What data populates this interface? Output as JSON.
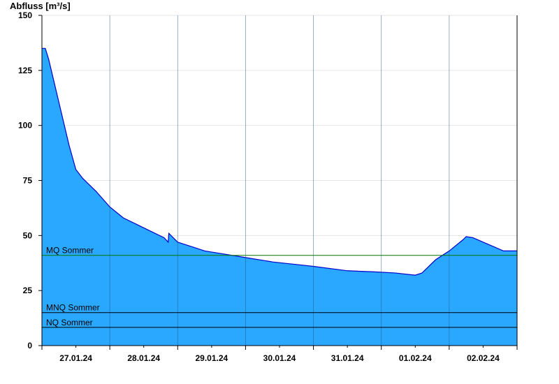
{
  "chart_data": {
    "type": "area",
    "title": "Abfluss [m³/s]",
    "ylim": [
      0,
      150
    ],
    "yticks": [
      0,
      25,
      50,
      75,
      100,
      125,
      150
    ],
    "xlim": [
      0,
      7
    ],
    "day_labels": [
      "27.01.24",
      "28.01.24",
      "29.01.24",
      "30.01.24",
      "31.01.24",
      "01.02.24",
      "02.02.24"
    ],
    "grid": true,
    "series": [
      {
        "x": [
          0,
          0.05,
          0.1,
          0.2,
          0.3,
          0.4,
          0.5,
          0.6,
          0.8,
          1.0,
          1.2,
          1.4,
          1.6,
          1.8,
          1.86,
          1.87,
          2.0,
          2.2,
          2.4,
          2.6,
          3.0,
          3.4,
          3.7,
          4.0,
          4.5,
          4.9,
          5.2,
          5.5,
          5.6,
          5.7,
          5.8,
          6.0,
          6.2,
          6.25,
          6.35,
          6.5,
          6.65,
          6.8,
          7.0
        ],
        "y": [
          135,
          135,
          130,
          117,
          104,
          91,
          80,
          76,
          70,
          63,
          58,
          55,
          52,
          49,
          47,
          51,
          47,
          45,
          43,
          42,
          40,
          38,
          37,
          36,
          34,
          33.5,
          33,
          32,
          33,
          36,
          39,
          43,
          48,
          49.5,
          49,
          47,
          45,
          43,
          43
        ]
      }
    ],
    "reference_lines": [
      {
        "label": "MQ Sommer",
        "value": 41,
        "color": "#007700"
      },
      {
        "label": "MNQ Sommer",
        "value": 15,
        "color": "#000000"
      },
      {
        "label": "NQ Sommer",
        "value": 8.3,
        "color": "#000000"
      }
    ],
    "colors": {
      "fill": "#2aa8ff",
      "stroke": "#0000cc",
      "grid": "#e6e6e6",
      "axis": "#000000"
    }
  }
}
